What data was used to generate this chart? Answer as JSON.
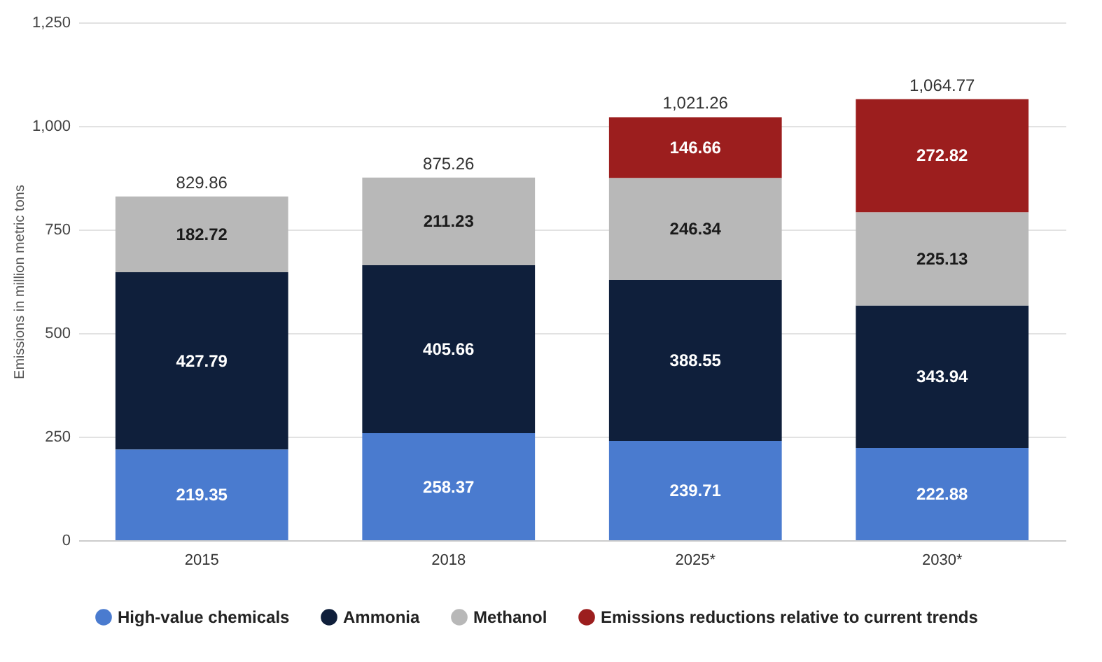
{
  "chart_data": {
    "type": "bar",
    "stacked": true,
    "ylabel": "Emissions in million metric tons",
    "categories": [
      "2015",
      "2018",
      "2025*",
      "2030*"
    ],
    "series": [
      {
        "name": "High-value chemicals",
        "color": "#4a7bcf",
        "values": [
          219.35,
          258.37,
          239.71,
          222.88
        ]
      },
      {
        "name": "Ammonia",
        "color": "#0f1f3b",
        "values": [
          427.79,
          405.66,
          388.55,
          343.94
        ]
      },
      {
        "name": "Methanol",
        "color": "#b8b8b8",
        "values": [
          182.72,
          211.23,
          246.34,
          225.13
        ]
      },
      {
        "name": "Emissions reductions relative to current trends",
        "color": "#9c1e1e",
        "values": [
          null,
          null,
          146.66,
          272.82
        ]
      }
    ],
    "totals": [
      "829.86",
      "875.26",
      "1,021.26",
      "1,064.77"
    ],
    "ylim": [
      0,
      1250
    ],
    "yticks": [
      0,
      250,
      500,
      750,
      {
        "value": 1000,
        "label": "1,000"
      },
      {
        "value": 1250,
        "label": "1,250"
      }
    ],
    "grid": "y",
    "legend": "bottom",
    "data_labels": true
  }
}
